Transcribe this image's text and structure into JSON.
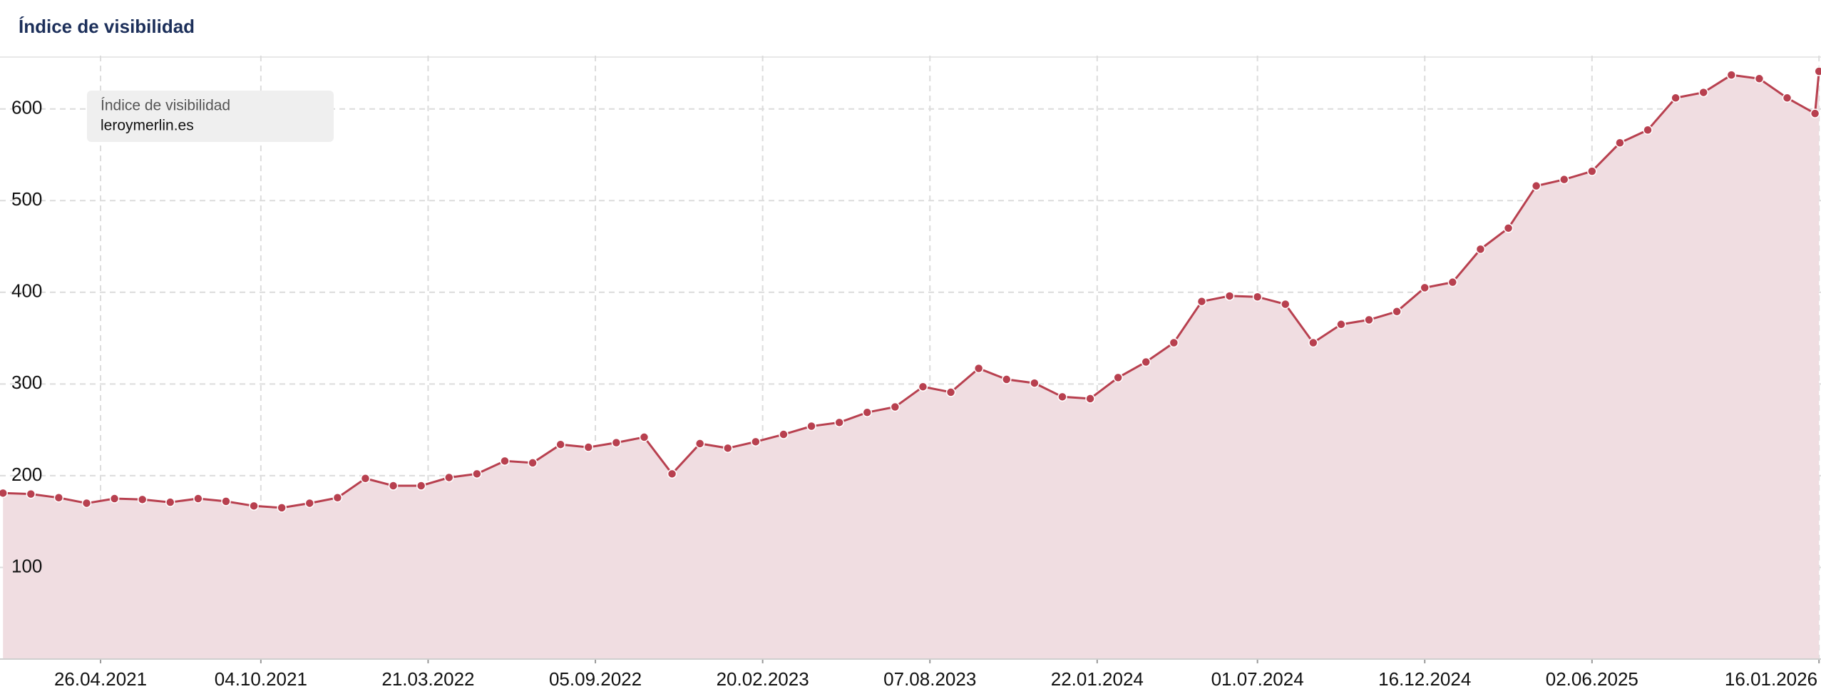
{
  "chart_data": {
    "type": "area",
    "title": "Índice de visibilidad",
    "legend_title": "Índice de visibilidad",
    "x": [
      "18.01.2021",
      "15.02.2021",
      "15.03.2021",
      "12.04.2021",
      "10.05.2021",
      "07.06.2021",
      "05.07.2021",
      "02.08.2021",
      "30.08.2021",
      "27.09.2021",
      "25.10.2021",
      "22.11.2021",
      "20.12.2021",
      "17.01.2022",
      "14.02.2022",
      "14.03.2022",
      "11.04.2022",
      "09.05.2022",
      "06.06.2022",
      "04.07.2022",
      "01.08.2022",
      "29.08.2022",
      "26.09.2022",
      "24.10.2022",
      "21.11.2022",
      "19.12.2022",
      "16.01.2023",
      "13.02.2023",
      "13.03.2023",
      "10.04.2023",
      "08.05.2023",
      "05.06.2023",
      "03.07.2023",
      "31.07.2023",
      "28.08.2023",
      "25.09.2023",
      "23.10.2023",
      "20.11.2023",
      "18.12.2023",
      "15.01.2024",
      "12.02.2024",
      "11.03.2024",
      "08.04.2024",
      "06.05.2024",
      "03.06.2024",
      "01.07.2024",
      "29.07.2024",
      "26.08.2024",
      "23.09.2024",
      "21.10.2024",
      "18.11.2024",
      "16.12.2024",
      "13.01.2025",
      "10.02.2025",
      "10.03.2025",
      "07.04.2025",
      "05.05.2025",
      "02.06.2025",
      "30.06.2025",
      "28.07.2025",
      "25.08.2025",
      "22.09.2025",
      "20.10.2025",
      "17.11.2025",
      "15.12.2025",
      "12.01.2026",
      "16.01.2026"
    ],
    "series": [
      {
        "name": "leroymerlin.es",
        "color": "#b8404f",
        "fill": "#f0dde1",
        "values": [
          181,
          180,
          176,
          170,
          175,
          174,
          171,
          175,
          172,
          167,
          165,
          170,
          176,
          197,
          189,
          189,
          198,
          202,
          216,
          214,
          234,
          231,
          236,
          242,
          202,
          235,
          230,
          237,
          245,
          254,
          258,
          269,
          275,
          297,
          291,
          317,
          305,
          301,
          286,
          284,
          307,
          324,
          345,
          390,
          396,
          395,
          387,
          345,
          365,
          370,
          379,
          405,
          411,
          447,
          470,
          516,
          523,
          532,
          563,
          577,
          612,
          618,
          637,
          633,
          612,
          595,
          641
        ]
      }
    ],
    "xlim": [
      "15.01.2021",
      "18.01.2026"
    ],
    "xticks": [
      "26.04.2021",
      "04.10.2021",
      "21.03.2022",
      "05.09.2022",
      "20.02.2023",
      "07.08.2023",
      "22.01.2024",
      "01.07.2024",
      "16.12.2024",
      "02.06.2025",
      "16.01.2026"
    ],
    "ylim": [
      0,
      655
    ],
    "yticks": [
      100,
      200,
      300,
      400,
      500,
      600
    ],
    "grid": true
  }
}
